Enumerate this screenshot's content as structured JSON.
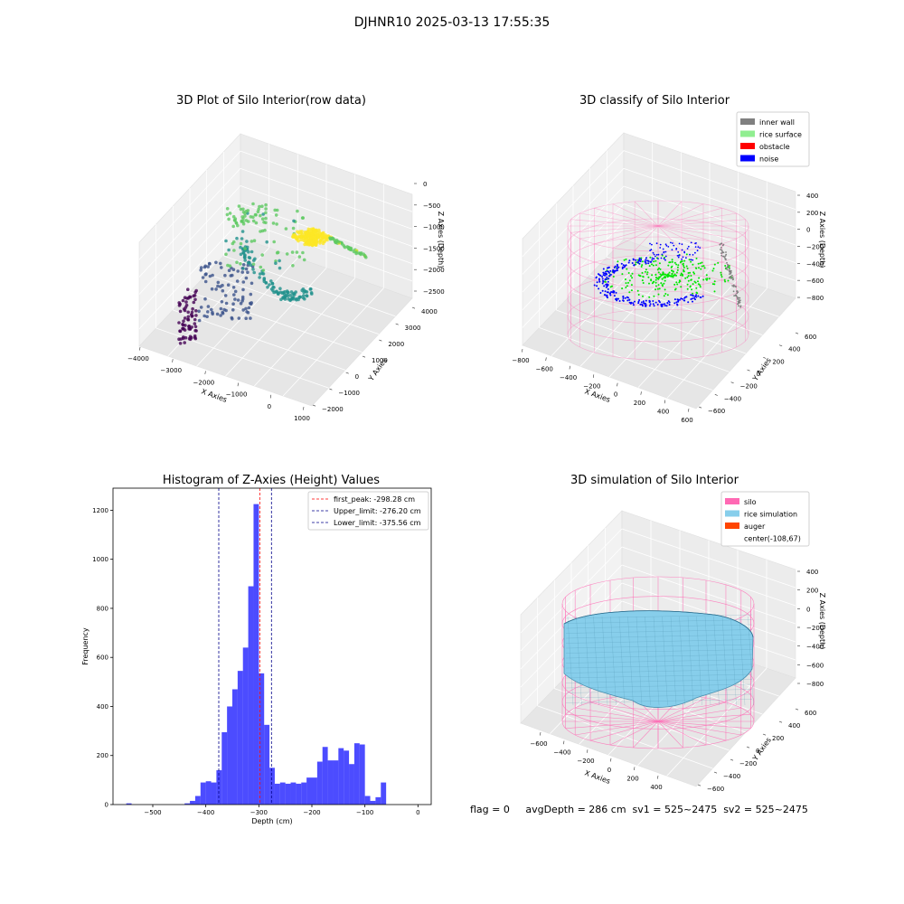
{
  "suptitle": "DJHNR10 2025-03-13 17:55:35",
  "panels": {
    "raw": {
      "title": "3D Plot of Silo Interior(row data)",
      "xlabel": "X Axies",
      "ylabel": "Y Axies",
      "zlabel": "Z Axies (Depth)",
      "xticks": [
        "−4000",
        "−3000",
        "−2000",
        "−1000",
        "0",
        "1000"
      ],
      "yticks": [
        "−2000",
        "−1000",
        "0",
        "1000",
        "2000",
        "3000",
        "4000"
      ],
      "zticks": [
        "0",
        "−500",
        "−1000",
        "−1500",
        "−2000",
        "−2500"
      ],
      "colormap": [
        "#440154",
        "#3b528b",
        "#21918c",
        "#5ec962",
        "#fde725"
      ]
    },
    "classify": {
      "title": "3D classify of Silo Interior",
      "xlabel": "X Axies",
      "ylabel": "Y Axies",
      "zlabel": "Z Axies (Depth)",
      "xticks": [
        "−800",
        "−600",
        "−400",
        "−200",
        "0",
        "200",
        "400",
        "600"
      ],
      "yticks": [
        "−600",
        "−400",
        "−200",
        "0",
        "200",
        "400",
        "600"
      ],
      "zticks": [
        "400",
        "200",
        "0",
        "−200",
        "−400",
        "−600",
        "−800"
      ],
      "legend": [
        {
          "label": "inner wall",
          "color": "#808080"
        },
        {
          "label": "rice surface",
          "color": "#90ee90"
        },
        {
          "label": "obstacle",
          "color": "#ff0000"
        },
        {
          "label": "noise",
          "color": "#0000ff"
        }
      ]
    },
    "simulation": {
      "title": "3D simulation of Silo Interior",
      "xlabel": "X Axies",
      "ylabel": "Y Axies",
      "zlabel": "Z Axies (Depth)",
      "xticks": [
        "−600",
        "−400",
        "−200",
        "0",
        "200",
        "400"
      ],
      "yticks": [
        "−600",
        "−400",
        "−200",
        "0",
        "200",
        "400",
        "600"
      ],
      "zticks": [
        "400",
        "200",
        "0",
        "−200",
        "−400",
        "−600",
        "−800"
      ],
      "legend": [
        {
          "label": "silo",
          "color": "#ff69b4"
        },
        {
          "label": "rice simulation",
          "color": "#87ceeb"
        },
        {
          "label": "auger",
          "color": "#ff4500"
        },
        {
          "label": "center(-108,67)",
          "color": ""
        }
      ]
    }
  },
  "footer": "flag = 0     avgDepth = 286 cm  sv1 = 525~2475  sv2 = 525~2475",
  "chart_data": {
    "type": "bar",
    "title": "Histogram of Z-Axies (Height) Values",
    "xlabel": "Depth (cm)",
    "ylabel": "Frequency",
    "xlim": [
      -575,
      25
    ],
    "ylim": [
      0,
      1290
    ],
    "xticks": [
      -500,
      -400,
      -300,
      -200,
      -100,
      0
    ],
    "yticks": [
      0,
      200,
      400,
      600,
      800,
      1000,
      1200
    ],
    "bar_color": "#0000ff",
    "bin_width": 10,
    "bins": [
      {
        "x": -550,
        "v": 5
      },
      {
        "x": -440,
        "v": 5
      },
      {
        "x": -430,
        "v": 15
      },
      {
        "x": -420,
        "v": 35
      },
      {
        "x": -410,
        "v": 90
      },
      {
        "x": -400,
        "v": 95
      },
      {
        "x": -390,
        "v": 90
      },
      {
        "x": -380,
        "v": 140
      },
      {
        "x": -370,
        "v": 295
      },
      {
        "x": -360,
        "v": 400
      },
      {
        "x": -350,
        "v": 470
      },
      {
        "x": -340,
        "v": 545
      },
      {
        "x": -330,
        "v": 640
      },
      {
        "x": -320,
        "v": 890
      },
      {
        "x": -310,
        "v": 1225
      },
      {
        "x": -300,
        "v": 535
      },
      {
        "x": -290,
        "v": 325
      },
      {
        "x": -280,
        "v": 150
      },
      {
        "x": -270,
        "v": 85
      },
      {
        "x": -260,
        "v": 90
      },
      {
        "x": -250,
        "v": 85
      },
      {
        "x": -240,
        "v": 90
      },
      {
        "x": -230,
        "v": 85
      },
      {
        "x": -220,
        "v": 90
      },
      {
        "x": -210,
        "v": 110
      },
      {
        "x": -200,
        "v": 110
      },
      {
        "x": -190,
        "v": 175
      },
      {
        "x": -180,
        "v": 235
      },
      {
        "x": -170,
        "v": 180
      },
      {
        "x": -160,
        "v": 180
      },
      {
        "x": -150,
        "v": 230
      },
      {
        "x": -140,
        "v": 220
      },
      {
        "x": -130,
        "v": 165
      },
      {
        "x": -120,
        "v": 250
      },
      {
        "x": -110,
        "v": 245
      },
      {
        "x": -100,
        "v": 35
      },
      {
        "x": -90,
        "v": 15
      },
      {
        "x": -80,
        "v": 30
      },
      {
        "x": -70,
        "v": 90
      }
    ],
    "lines": [
      {
        "label": "first_peak: -298.28 cm",
        "x": -298.28,
        "color": "#ff0000"
      },
      {
        "label": "Upper_limit: -276.20 cm",
        "x": -276.2,
        "color": "#00008b"
      },
      {
        "label": "Lower_limit: -375.56 cm",
        "x": -375.56,
        "color": "#00008b"
      }
    ]
  }
}
